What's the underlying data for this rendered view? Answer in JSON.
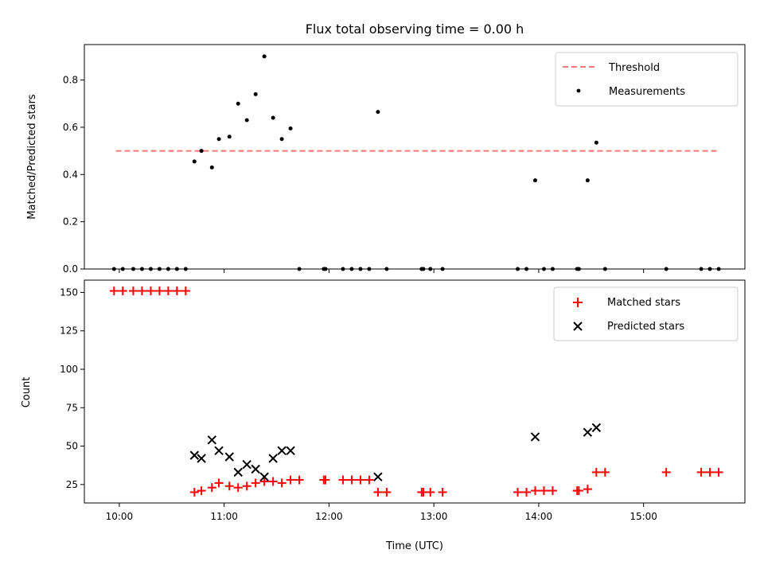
{
  "chart_data": [
    {
      "type": "scatter",
      "title": "Flux total observing time = 0.00 h",
      "xlabel": "",
      "ylabel": "Matched/Predicted stars",
      "xlim": [
        "09:40",
        "15:58"
      ],
      "ylim": [
        0,
        0.95
      ],
      "yticks": [
        0.0,
        0.2,
        0.4,
        0.6,
        0.8
      ],
      "ytick_labels": [
        "0.0",
        "0.2",
        "0.4",
        "0.6",
        "0.8"
      ],
      "xticks": [
        "10:00",
        "11:00",
        "12:00",
        "13:00",
        "14:00",
        "15:00"
      ],
      "xtick_labels_visible": false,
      "legend_position": "top-right",
      "grid": false,
      "threshold": {
        "name": "Threshold",
        "value": 0.5,
        "x": [
          "09:58",
          "15:43"
        ],
        "color": "#ff7777",
        "style": "dashed"
      },
      "series": [
        {
          "name": "Measurements",
          "color": "#000000",
          "marker": "dot",
          "points": [
            [
              "09:57",
              0
            ],
            [
              "10:02",
              0
            ],
            [
              "10:08",
              0
            ],
            [
              "10:13",
              0
            ],
            [
              "10:18",
              0
            ],
            [
              "10:23",
              0
            ],
            [
              "10:28",
              0
            ],
            [
              "10:33",
              0
            ],
            [
              "10:38",
              0
            ],
            [
              "10:43",
              0.455
            ],
            [
              "10:47",
              0.5
            ],
            [
              "10:53",
              0.43
            ],
            [
              "10:57",
              0.55
            ],
            [
              "11:03",
              0.56
            ],
            [
              "11:08",
              0.7
            ],
            [
              "11:13",
              0.63
            ],
            [
              "11:18",
              0.74
            ],
            [
              "11:23",
              0.9
            ],
            [
              "11:28",
              0.64
            ],
            [
              "11:33",
              0.55
            ],
            [
              "11:38",
              0.595
            ],
            [
              "11:43",
              0
            ],
            [
              "11:57",
              0
            ],
            [
              "11:58",
              0
            ],
            [
              "12:08",
              0
            ],
            [
              "12:13",
              0
            ],
            [
              "12:18",
              0
            ],
            [
              "12:23",
              0
            ],
            [
              "12:28",
              0.665
            ],
            [
              "12:33",
              0
            ],
            [
              "12:53",
              0
            ],
            [
              "12:54",
              0
            ],
            [
              "12:58",
              0
            ],
            [
              "13:05",
              0
            ],
            [
              "13:48",
              0
            ],
            [
              "13:53",
              0
            ],
            [
              "13:58",
              0.375
            ],
            [
              "14:03",
              0
            ],
            [
              "14:08",
              0
            ],
            [
              "14:22",
              0
            ],
            [
              "14:23",
              0
            ],
            [
              "14:28",
              0.375
            ],
            [
              "14:33",
              0.535
            ],
            [
              "14:38",
              0
            ],
            [
              "15:13",
              0
            ],
            [
              "15:33",
              0
            ],
            [
              "15:38",
              0
            ],
            [
              "15:43",
              0
            ]
          ]
        }
      ]
    },
    {
      "type": "scatter",
      "title": "",
      "xlabel": "Time (UTC)",
      "ylabel": "Count",
      "xlim": [
        "09:40",
        "15:58"
      ],
      "ylim": [
        13,
        158
      ],
      "yticks": [
        25,
        50,
        75,
        100,
        125,
        150
      ],
      "ytick_labels": [
        "25",
        "50",
        "75",
        "100",
        "125",
        "150"
      ],
      "xticks": [
        "10:00",
        "11:00",
        "12:00",
        "13:00",
        "14:00",
        "15:00"
      ],
      "xtick_labels": [
        "10:00",
        "11:00",
        "12:00",
        "13:00",
        "14:00",
        "15:00"
      ],
      "legend_position": "top-right",
      "grid": false,
      "series": [
        {
          "name": "Matched stars",
          "color": "#ff0000",
          "marker": "plus",
          "points": [
            [
              "09:57",
              151
            ],
            [
              "10:02",
              151
            ],
            [
              "10:08",
              151
            ],
            [
              "10:13",
              151
            ],
            [
              "10:18",
              151
            ],
            [
              "10:23",
              151
            ],
            [
              "10:28",
              151
            ],
            [
              "10:33",
              151
            ],
            [
              "10:38",
              151
            ],
            [
              "10:43",
              20
            ],
            [
              "10:47",
              21
            ],
            [
              "10:53",
              23
            ],
            [
              "10:57",
              26
            ],
            [
              "11:03",
              24
            ],
            [
              "11:08",
              23
            ],
            [
              "11:13",
              24
            ],
            [
              "11:18",
              26
            ],
            [
              "11:23",
              27
            ],
            [
              "11:28",
              27
            ],
            [
              "11:33",
              26
            ],
            [
              "11:38",
              28
            ],
            [
              "11:43",
              28
            ],
            [
              "11:57",
              28
            ],
            [
              "11:58",
              28
            ],
            [
              "12:08",
              28
            ],
            [
              "12:13",
              28
            ],
            [
              "12:18",
              28
            ],
            [
              "12:23",
              28
            ],
            [
              "12:28",
              20
            ],
            [
              "12:33",
              20
            ],
            [
              "12:53",
              20
            ],
            [
              "12:54",
              20
            ],
            [
              "12:58",
              20
            ],
            [
              "13:05",
              20
            ],
            [
              "13:48",
              20
            ],
            [
              "13:53",
              20
            ],
            [
              "13:58",
              21
            ],
            [
              "14:03",
              21
            ],
            [
              "14:08",
              21
            ],
            [
              "14:22",
              21
            ],
            [
              "14:23",
              21
            ],
            [
              "14:28",
              22
            ],
            [
              "14:33",
              33
            ],
            [
              "14:38",
              33
            ],
            [
              "15:13",
              33
            ],
            [
              "15:33",
              33
            ],
            [
              "15:38",
              33
            ],
            [
              "15:43",
              33
            ]
          ]
        },
        {
          "name": "Predicted stars",
          "color": "#000000",
          "marker": "x",
          "points": [
            [
              "10:43",
              44
            ],
            [
              "10:47",
              42
            ],
            [
              "10:53",
              54
            ],
            [
              "10:57",
              47
            ],
            [
              "11:03",
              43
            ],
            [
              "11:08",
              33
            ],
            [
              "11:13",
              38
            ],
            [
              "11:18",
              35
            ],
            [
              "11:23",
              30
            ],
            [
              "11:28",
              42
            ],
            [
              "11:33",
              47
            ],
            [
              "11:38",
              47
            ],
            [
              "12:28",
              30
            ],
            [
              "13:58",
              56
            ],
            [
              "14:28",
              59
            ],
            [
              "14:33",
              62
            ]
          ]
        }
      ]
    }
  ]
}
